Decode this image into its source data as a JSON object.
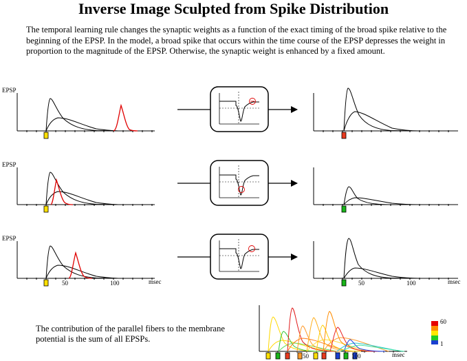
{
  "title": "Inverse Image Sculpted from Spike Distribution",
  "intro": "The temporal learning rule changes the synaptic weights as a function of the exact timing of the broad spike relative to the beginning of the EPSP. In the model, a broad spike that occurs within the time course of the EPSP depresses the weight in proportion to the magnitude of the EPSP. Otherwise, the synaptic weight is enhanced by a fixed amount.",
  "footer": "The contribution of the parallel fibers to the membrane potential is the sum of all EPSPs.",
  "axis": {
    "y_label": "EPSP",
    "x_unit": "msec",
    "tick_50": "50",
    "tick_100": "100"
  },
  "colorbar": {
    "max": "60",
    "min": "1"
  },
  "colors": {
    "spike": "#e00000",
    "marker_yellow": "#ffe000",
    "marker_green": "#19b419",
    "marker_red": "#e83a1f",
    "marker_blue": "#1a3fd0"
  },
  "rows": [
    {
      "spike_time_ms": 75,
      "result_marker": "red",
      "outcome": "enhanced"
    },
    {
      "spike_time_ms": 10,
      "result_marker": "green",
      "outcome": "depressed"
    },
    {
      "spike_time_ms": 30,
      "result_marker": "green",
      "outcome": "depressed"
    }
  ]
}
